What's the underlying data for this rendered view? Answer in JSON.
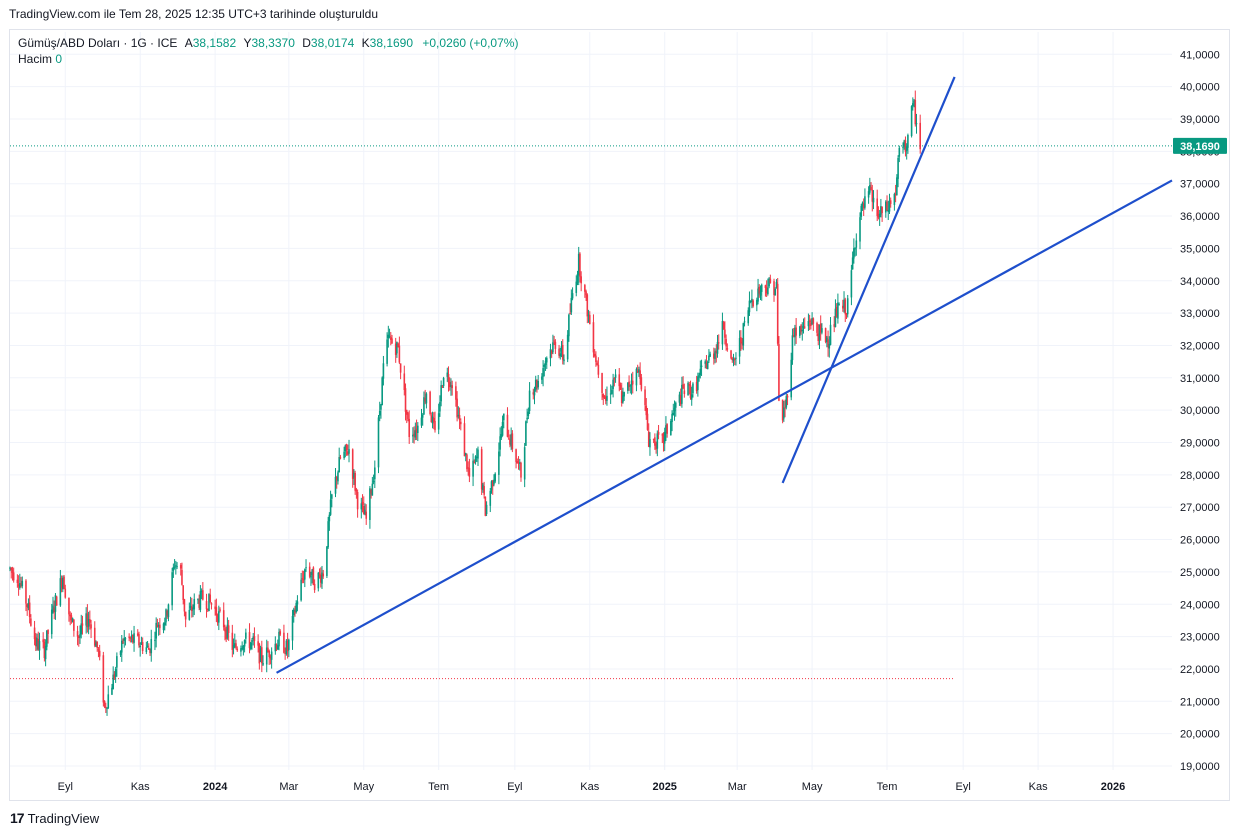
{
  "caption": "TradingView.com ile Tem 28, 2025 12:35 UTC+3 tarihinde oluşturuldu",
  "legend": {
    "symbol": "Gümüş/ABD Doları · 1G · ICE",
    "open_label": "A",
    "open": "38,1582",
    "high_label": "Y",
    "high": "38,3370",
    "low_label": "D",
    "low": "38,0174",
    "close_label": "K",
    "close": "38,1690",
    "change": "+0,0260 (+0,07%)",
    "volume_label": "Hacim",
    "volume": "0"
  },
  "footer": {
    "brand": "TradingView",
    "logo": "tradingview-logo-icon"
  },
  "colors": {
    "up": "#089981",
    "down": "#f23645",
    "trendline": "#1e4fcc",
    "grid": "#f0f3fa",
    "text": "#131722",
    "price_line": "#089981",
    "low_line": "#f23645"
  },
  "chart_data": {
    "type": "candlestick",
    "y_axis": {
      "min": 19.0,
      "max": 41.0,
      "ticks": [
        "19,0000",
        "20,0000",
        "21,0000",
        "22,0000",
        "23,0000",
        "24,0000",
        "25,0000",
        "26,0000",
        "27,0000",
        "28,0000",
        "29,0000",
        "30,0000",
        "31,0000",
        "32,0000",
        "33,0000",
        "34,0000",
        "35,0000",
        "36,0000",
        "37,0000",
        "38,0000",
        "39,0000",
        "40,0000",
        "41,0000"
      ]
    },
    "x_axis": {
      "start": "2023-07-18",
      "end": "2026-02-18",
      "ticks": [
        {
          "date": "2023-09-01",
          "label": "Eyl",
          "bold": false
        },
        {
          "date": "2023-11-01",
          "label": "Kas",
          "bold": false
        },
        {
          "date": "2024-01-01",
          "label": "2024",
          "bold": true
        },
        {
          "date": "2024-03-01",
          "label": "Mar",
          "bold": false
        },
        {
          "date": "2024-05-01",
          "label": "May",
          "bold": false
        },
        {
          "date": "2024-07-01",
          "label": "Tem",
          "bold": false
        },
        {
          "date": "2024-09-01",
          "label": "Eyl",
          "bold": false
        },
        {
          "date": "2024-11-01",
          "label": "Kas",
          "bold": false
        },
        {
          "date": "2025-01-01",
          "label": "2025",
          "bold": true
        },
        {
          "date": "2025-03-01",
          "label": "Mar",
          "bold": false
        },
        {
          "date": "2025-05-01",
          "label": "May",
          "bold": false
        },
        {
          "date": "2025-07-01",
          "label": "Tem",
          "bold": false
        },
        {
          "date": "2025-09-01",
          "label": "Eyl",
          "bold": false
        },
        {
          "date": "2025-11-01",
          "label": "Kas",
          "bold": false
        },
        {
          "date": "2026-01-01",
          "label": "2026",
          "bold": true
        }
      ]
    },
    "grid": true,
    "current_price": {
      "value": 38.169,
      "label": "38,1690"
    },
    "low_reference": {
      "value": 21.7,
      "from": "2023-07-18",
      "to": "2025-08-25"
    },
    "trendlines": [
      {
        "from": {
          "date": "2024-02-20",
          "value": 21.88
        },
        "to": {
          "date": "2026-02-18",
          "value": 37.1
        }
      },
      {
        "from": {
          "date": "2025-04-07",
          "value": 27.75
        },
        "to": {
          "date": "2025-08-25",
          "value": 40.3
        }
      }
    ],
    "price_path": [
      [
        "2023-07-18",
        25.1
      ],
      [
        "2023-07-25",
        24.8
      ],
      [
        "2023-08-01",
        24.0
      ],
      [
        "2023-08-08",
        22.8
      ],
      [
        "2023-08-15",
        22.6
      ],
      [
        "2023-08-22",
        23.8
      ],
      [
        "2023-08-30",
        24.9
      ],
      [
        "2023-09-05",
        23.5
      ],
      [
        "2023-09-12",
        23.0
      ],
      [
        "2023-09-20",
        23.6
      ],
      [
        "2023-09-28",
        22.5
      ],
      [
        "2023-10-03",
        20.8
      ],
      [
        "2023-10-10",
        21.7
      ],
      [
        "2023-10-18",
        22.9
      ],
      [
        "2023-10-25",
        22.9
      ],
      [
        "2023-11-01",
        22.8
      ],
      [
        "2023-11-08",
        22.6
      ],
      [
        "2023-11-15",
        23.4
      ],
      [
        "2023-11-22",
        23.6
      ],
      [
        "2023-11-29",
        25.3
      ],
      [
        "2023-12-04",
        25.0
      ],
      [
        "2023-12-08",
        23.5
      ],
      [
        "2023-12-15",
        24.0
      ],
      [
        "2023-12-22",
        24.2
      ],
      [
        "2023-12-29",
        24.0
      ],
      [
        "2024-01-08",
        23.4
      ],
      [
        "2024-01-16",
        22.6
      ],
      [
        "2024-01-24",
        22.9
      ],
      [
        "2024-02-01",
        22.8
      ],
      [
        "2024-02-08",
        22.3
      ],
      [
        "2024-02-15",
        22.6
      ],
      [
        "2024-02-22",
        22.9
      ],
      [
        "2024-02-29",
        22.6
      ],
      [
        "2024-03-08",
        24.2
      ],
      [
        "2024-03-15",
        25.2
      ],
      [
        "2024-03-22",
        24.7
      ],
      [
        "2024-03-29",
        25.0
      ],
      [
        "2024-04-05",
        27.3
      ],
      [
        "2024-04-12",
        28.5
      ],
      [
        "2024-04-19",
        28.8
      ],
      [
        "2024-04-26",
        27.2
      ],
      [
        "2024-05-03",
        26.6
      ],
      [
        "2024-05-10",
        28.3
      ],
      [
        "2024-05-17",
        31.3
      ],
      [
        "2024-05-21",
        32.2
      ],
      [
        "2024-05-29",
        31.9
      ],
      [
        "2024-06-07",
        29.3
      ],
      [
        "2024-06-14",
        29.5
      ],
      [
        "2024-06-21",
        30.6
      ],
      [
        "2024-06-28",
        29.2
      ],
      [
        "2024-07-05",
        31.2
      ],
      [
        "2024-07-12",
        30.9
      ],
      [
        "2024-07-19",
        29.4
      ],
      [
        "2024-07-26",
        27.9
      ],
      [
        "2024-08-02",
        28.6
      ],
      [
        "2024-08-08",
        26.9
      ],
      [
        "2024-08-16",
        28.2
      ],
      [
        "2024-08-23",
        29.7
      ],
      [
        "2024-08-30",
        28.9
      ],
      [
        "2024-09-06",
        28.0
      ],
      [
        "2024-09-13",
        30.6
      ],
      [
        "2024-09-20",
        30.9
      ],
      [
        "2024-09-27",
        31.7
      ],
      [
        "2024-10-04",
        32.1
      ],
      [
        "2024-10-11",
        31.6
      ],
      [
        "2024-10-18",
        33.6
      ],
      [
        "2024-10-23",
        34.6
      ],
      [
        "2024-10-31",
        32.9
      ],
      [
        "2024-11-07",
        31.4
      ],
      [
        "2024-11-14",
        30.3
      ],
      [
        "2024-11-21",
        31.0
      ],
      [
        "2024-11-28",
        30.3
      ],
      [
        "2024-12-05",
        31.0
      ],
      [
        "2024-12-12",
        31.2
      ],
      [
        "2024-12-19",
        29.1
      ],
      [
        "2024-12-30",
        29.0
      ],
      [
        "2025-01-08",
        29.9
      ],
      [
        "2025-01-16",
        30.6
      ],
      [
        "2025-01-24",
        30.6
      ],
      [
        "2025-02-03",
        31.4
      ],
      [
        "2025-02-10",
        31.8
      ],
      [
        "2025-02-18",
        32.6
      ],
      [
        "2025-02-25",
        31.3
      ],
      [
        "2025-03-05",
        32.3
      ],
      [
        "2025-03-12",
        33.4
      ],
      [
        "2025-03-19",
        33.7
      ],
      [
        "2025-03-26",
        33.9
      ],
      [
        "2025-04-02",
        33.8
      ],
      [
        "2025-04-04",
        30.2
      ],
      [
        "2025-04-07",
        29.8
      ],
      [
        "2025-04-10",
        30.3
      ],
      [
        "2025-04-16",
        32.5
      ],
      [
        "2025-04-22",
        32.4
      ],
      [
        "2025-04-29",
        32.8
      ],
      [
        "2025-05-06",
        32.4
      ],
      [
        "2025-05-14",
        32.2
      ],
      [
        "2025-05-22",
        33.1
      ],
      [
        "2025-05-30",
        33.2
      ],
      [
        "2025-06-05",
        35.3
      ],
      [
        "2025-06-10",
        36.1
      ],
      [
        "2025-06-17",
        36.7
      ],
      [
        "2025-06-24",
        36.0
      ],
      [
        "2025-07-01",
        36.2
      ],
      [
        "2025-07-08",
        36.7
      ],
      [
        "2025-07-11",
        38.0
      ],
      [
        "2025-07-16",
        38.1
      ],
      [
        "2025-07-21",
        39.2
      ],
      [
        "2025-07-23",
        39.3
      ],
      [
        "2025-07-28",
        38.2
      ]
    ]
  }
}
